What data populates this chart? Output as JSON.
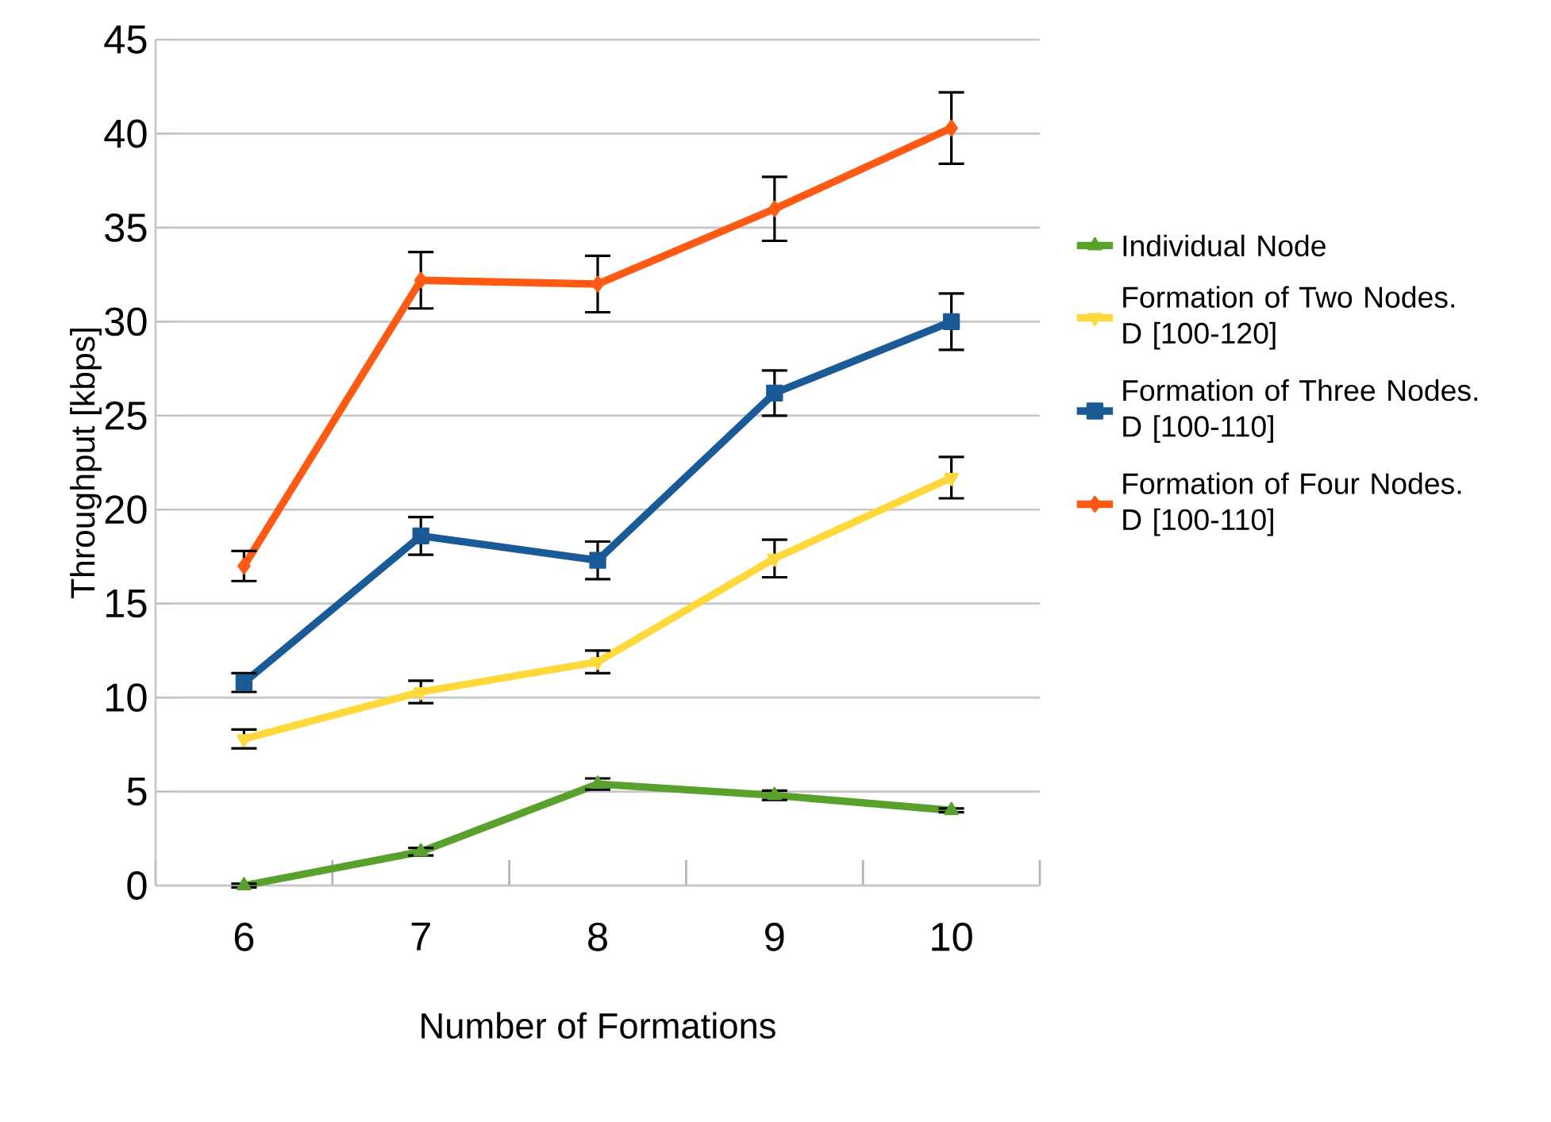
{
  "chart_data": {
    "type": "line",
    "xlabel": "Number of Formations",
    "ylabel": "Throughput [kbps]",
    "categories": [
      "6",
      "7",
      "8",
      "9",
      "10"
    ],
    "series": [
      {
        "name": "Individual Node",
        "color": "#5aa02c",
        "marker": "triangle",
        "values": [
          0,
          1.8,
          5.4,
          4.8,
          4.0
        ],
        "errors": [
          0.1,
          0.2,
          0.3,
          0.25,
          0.1
        ]
      },
      {
        "name": "Formation of Two Nodes. D [100-120]",
        "color": "#ffd83c",
        "marker": "triangle down",
        "values": [
          7.8,
          10.3,
          11.9,
          17.4,
          21.7
        ],
        "errors": [
          0.5,
          0.6,
          0.6,
          1.0,
          1.1
        ]
      },
      {
        "name": "Formation of Three Nodes. D [100-110]",
        "color": "#1a5a96",
        "marker": "square",
        "values": [
          10.8,
          18.6,
          17.3,
          26.2,
          30.0
        ],
        "errors": [
          0.5,
          1.0,
          1.0,
          1.2,
          1.5
        ]
      },
      {
        "name": "Formation of Four Nodes. D [100-110]",
        "color": "#ff5a14",
        "marker": "diamond",
        "values": [
          17.0,
          32.2,
          32.0,
          36.0,
          40.3
        ],
        "errors": [
          0.8,
          1.5,
          1.5,
          1.7,
          1.9
        ]
      }
    ],
    "ylim": [
      0,
      45
    ],
    "yticks": [
      0,
      5,
      10,
      15,
      20,
      25,
      30,
      35,
      40,
      45
    ],
    "grid": "y",
    "legend": "right",
    "line_style": "solid"
  }
}
